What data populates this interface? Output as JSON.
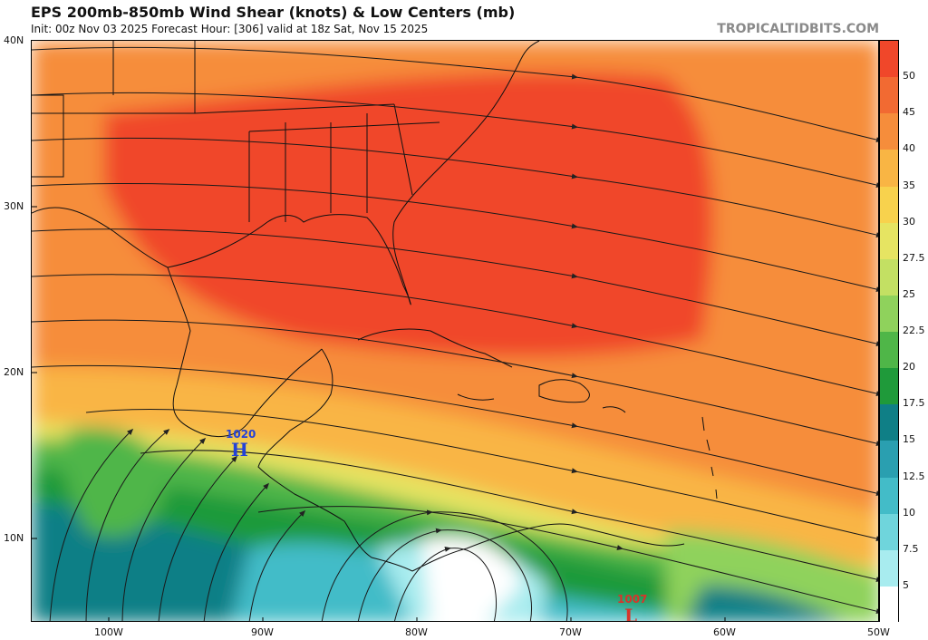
{
  "header": {
    "title": "EPS 200mb-850mb Wind Shear (knots) & Low Centers (mb)",
    "subtitle": "Init: 00z Nov 03 2025   Forecast Hour: [306]   valid at 18z Sat, Nov 15 2025",
    "site": "TROPICALTIDBITS.COM"
  },
  "axes": {
    "lat_labels": [
      "40N",
      "30N",
      "20N",
      "10N"
    ],
    "lon_labels": [
      "100W",
      "90W",
      "80W",
      "70W",
      "60W",
      "50W"
    ]
  },
  "colorbar": {
    "labels": [
      "50",
      "45",
      "40",
      "35",
      "30",
      "27.5",
      "25",
      "22.5",
      "20",
      "17.5",
      "15",
      "12.5",
      "10",
      "7.5",
      "5"
    ],
    "colors": [
      "#f0472a",
      "#f26a32",
      "#f68d3b",
      "#f9b544",
      "#f8d24d",
      "#e6e462",
      "#c3e063",
      "#8fd25c",
      "#4fb648",
      "#1f9a3a",
      "#0f7f86",
      "#2a9fb0",
      "#43bcc8",
      "#6fd5dc",
      "#a8ecef",
      "#ffffff"
    ]
  },
  "pressure_centers": [
    {
      "type": "H",
      "value": "1020",
      "color": "#2342d8"
    },
    {
      "type": "L",
      "value": "1007",
      "color": "#d8342a"
    }
  ]
}
